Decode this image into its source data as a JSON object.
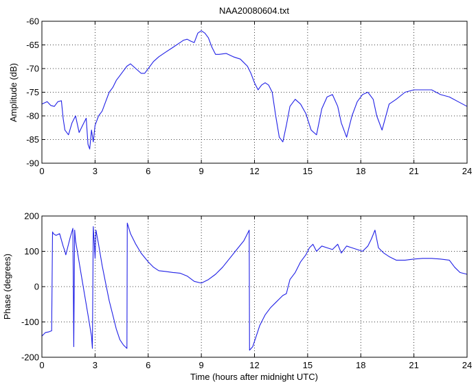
{
  "colors": {
    "line": "#1f1fe6",
    "axis": "#000000",
    "grid": "#000000",
    "background": "#ffffff"
  },
  "chart_data": [
    {
      "type": "line",
      "title": "NAA20080604.txt",
      "xlabel": "",
      "ylabel": "Amplitude (dB)",
      "xlim": [
        0,
        24
      ],
      "ylim": [
        -90,
        -60
      ],
      "xticks": [
        "0",
        "3",
        "6",
        "9",
        "12",
        "15",
        "18",
        "21",
        "24"
      ],
      "yticks": [
        "-90",
        "-85",
        "-80",
        "-75",
        "-70",
        "-65",
        "-60"
      ],
      "grid": true,
      "series": [
        {
          "x": [
            0,
            0.3,
            0.5,
            0.7,
            0.9,
            1.1,
            1.2,
            1.3,
            1.5,
            1.7,
            1.9,
            2.1,
            2.3,
            2.5,
            2.6,
            2.7,
            2.8,
            2.9,
            3.0,
            3.2,
            3.4,
            3.6,
            3.8,
            4.0,
            4.2,
            4.4,
            4.6,
            4.8,
            5.0,
            5.3,
            5.6,
            5.8,
            6.0,
            6.3,
            6.6,
            7.0,
            7.4,
            7.8,
            8.0,
            8.2,
            8.4,
            8.6,
            8.8,
            9.0,
            9.2,
            9.4,
            9.6,
            9.8,
            10.0,
            10.4,
            10.8,
            11.2,
            11.6,
            11.8,
            12.0,
            12.2,
            12.4,
            12.6,
            12.8,
            13.0,
            13.2,
            13.4,
            13.6,
            13.8,
            14.0,
            14.3,
            14.6,
            14.9,
            15.2,
            15.5,
            15.8,
            16.1,
            16.4,
            16.7,
            16.9,
            17.2,
            17.5,
            17.8,
            18.1,
            18.4,
            18.7,
            18.9,
            19.2,
            19.6,
            20.0,
            20.5,
            21.0,
            21.5,
            22.0,
            22.5,
            23.0,
            23.5,
            24.0
          ],
          "values": [
            -77.5,
            -77.0,
            -77.8,
            -78.0,
            -77.0,
            -76.8,
            -80.5,
            -83.0,
            -84.0,
            -81.5,
            -80.0,
            -83.5,
            -82.0,
            -80.5,
            -86.0,
            -87.0,
            -83.0,
            -85.5,
            -82.0,
            -80.0,
            -79.0,
            -77.0,
            -75.0,
            -74.0,
            -72.5,
            -71.5,
            -70.5,
            -69.5,
            -69.0,
            -70.0,
            -71.0,
            -71.0,
            -70.0,
            -68.5,
            -67.5,
            -66.5,
            -65.5,
            -64.5,
            -64.0,
            -63.8,
            -64.2,
            -64.5,
            -62.5,
            -62.0,
            -62.5,
            -63.5,
            -65.5,
            -67.0,
            -67.0,
            -66.8,
            -67.5,
            -68.0,
            -69.5,
            -71.0,
            -73.0,
            -74.5,
            -73.5,
            -73.0,
            -73.5,
            -75.0,
            -80.0,
            -84.5,
            -85.5,
            -82.0,
            -78.0,
            -76.5,
            -77.5,
            -79.5,
            -83.0,
            -84.0,
            -78.5,
            -76.0,
            -75.5,
            -78.0,
            -81.5,
            -84.5,
            -80.0,
            -77.0,
            -75.5,
            -75.0,
            -76.5,
            -80.0,
            -83.0,
            -77.5,
            -76.5,
            -75.0,
            -74.5,
            -74.5,
            -74.5,
            -75.5,
            -76.0,
            -77.0,
            -78.0
          ]
        }
      ]
    },
    {
      "type": "line",
      "title": "",
      "xlabel": "Time (hours after midnight UTC)",
      "ylabel": "Phase (degrees)",
      "xlim": [
        0,
        24
      ],
      "ylim": [
        -200,
        200
      ],
      "xticks": [
        "0",
        "3",
        "6",
        "9",
        "12",
        "15",
        "18",
        "21",
        "24"
      ],
      "yticks": [
        "-200",
        "-100",
        "0",
        "100",
        "200"
      ],
      "grid": true,
      "series": [
        {
          "x": [
            0,
            0.2,
            0.4,
            0.55,
            0.6,
            0.65,
            0.8,
            1.0,
            1.2,
            1.3,
            1.35,
            1.45,
            1.6,
            1.75,
            1.8,
            1.85,
            1.9,
            2.0,
            2.2,
            2.4,
            2.6,
            2.8,
            2.85,
            2.9,
            2.95,
            3.0,
            3.05,
            3.2,
            3.4,
            3.6,
            3.8,
            4.0,
            4.2,
            4.4,
            4.6,
            4.8,
            4.82,
            5.0,
            5.3,
            5.6,
            6.0,
            6.3,
            6.6,
            7.0,
            7.4,
            7.8,
            8.2,
            8.6,
            9.0,
            9.4,
            9.8,
            10.2,
            10.6,
            11.0,
            11.4,
            11.7,
            11.72,
            11.9,
            12.1,
            12.3,
            12.6,
            12.9,
            13.2,
            13.4,
            13.6,
            13.8,
            14.0,
            14.3,
            14.6,
            14.9,
            15.1,
            15.3,
            15.5,
            15.8,
            16.1,
            16.4,
            16.7,
            16.9,
            17.2,
            17.5,
            17.8,
            18.1,
            18.4,
            18.6,
            18.8,
            19.0,
            19.3,
            19.6,
            20.0,
            20.5,
            21.0,
            21.5,
            22.0,
            22.5,
            23.0,
            23.3,
            23.6,
            24.0
          ],
          "values": [
            -140,
            -130,
            -128,
            -125,
            155,
            150,
            145,
            150,
            115,
            100,
            90,
            110,
            140,
            165,
            -170,
            160,
            130,
            100,
            40,
            -20,
            -80,
            -140,
            -175,
            170,
            130,
            80,
            160,
            120,
            60,
            10,
            -40,
            -80,
            -120,
            -150,
            -165,
            -175,
            180,
            150,
            120,
            95,
            70,
            55,
            45,
            43,
            40,
            38,
            30,
            15,
            10,
            20,
            35,
            55,
            80,
            105,
            130,
            160,
            -180,
            -170,
            -140,
            -110,
            -80,
            -60,
            -45,
            -35,
            -25,
            -20,
            20,
            40,
            70,
            90,
            110,
            120,
            100,
            115,
            110,
            105,
            120,
            95,
            115,
            110,
            105,
            100,
            115,
            135,
            160,
            110,
            95,
            85,
            75,
            75,
            78,
            80,
            80,
            78,
            75,
            55,
            40,
            35
          ]
        }
      ]
    }
  ]
}
